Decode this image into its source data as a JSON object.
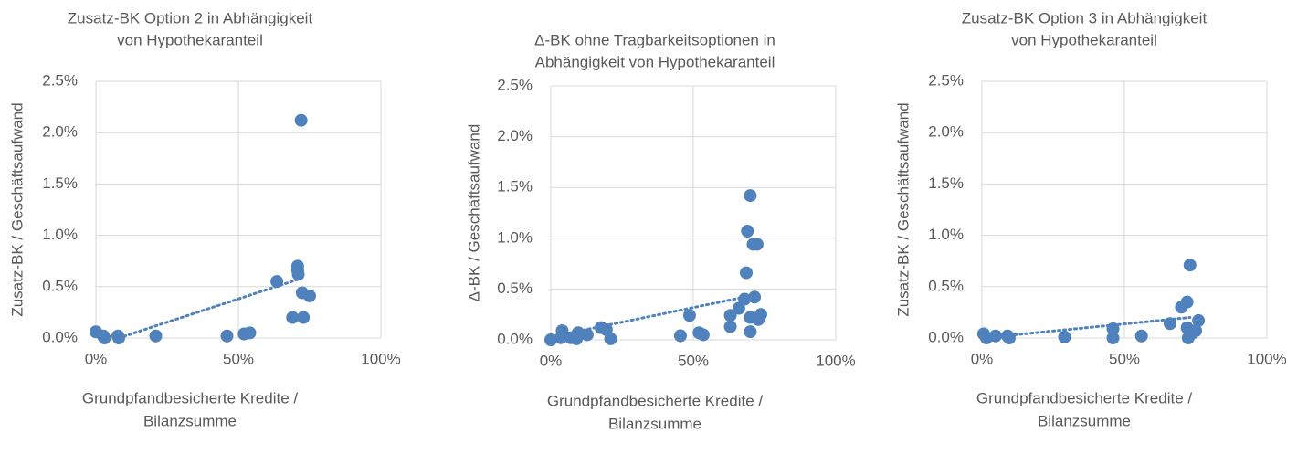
{
  "chart_data": [
    {
      "type": "scatter",
      "title": [
        "Zusatz-BK Option 2 in Abhängigkeit",
        "von Hypothekaranteil"
      ],
      "ylabel": "Zusatz-BK / Geschäftsaufwand",
      "xlabel": [
        "Grundpfandbesicherte Kredite /",
        "Bilanzsumme"
      ],
      "color": "#4f81bd",
      "grid": true,
      "xlim": [
        0,
        100
      ],
      "xticks": [
        {
          "value": 0,
          "label": "0%"
        },
        {
          "value": 50,
          "label": "50%"
        },
        {
          "value": 100,
          "label": "100%"
        }
      ],
      "ylim": [
        0,
        2.5
      ],
      "yticks": [
        {
          "value": 0,
          "label": "0.0%"
        },
        {
          "value": 0.5,
          "label": "0.5%"
        },
        {
          "value": 1,
          "label": "1.0%"
        },
        {
          "value": 1.5,
          "label": "1.5%"
        },
        {
          "value": 2,
          "label": "2.0%"
        },
        {
          "value": 2.5,
          "label": "2.5%"
        }
      ],
      "x": [
        0,
        2.6,
        3,
        8,
        7.7,
        21,
        46,
        52,
        54,
        63.5,
        70.8,
        70.8,
        71,
        72.4,
        75,
        69,
        72.8,
        72
      ],
      "values": [
        0.06,
        0.02,
        0,
        0,
        0.02,
        0.02,
        0.02,
        0.04,
        0.05,
        0.55,
        0.7,
        0.66,
        0.62,
        0.44,
        0.41,
        0.2,
        0.2,
        2.12
      ],
      "trendline": {
        "x": [
          8,
          72
        ],
        "values": [
          0,
          0.58
        ]
      }
    },
    {
      "type": "scatter",
      "title": [
        "Δ-BK ohne Tragbarkeitsoptionen in",
        "Abhängigkeit von Hypothekaranteil"
      ],
      "ylabel": "Δ-BK / Geschäftsaufwand",
      "xlabel": [
        "Grundpfandbesicherte Kredite /",
        "Bilanzsumme"
      ],
      "color": "#4f81bd",
      "grid": true,
      "xlim": [
        0,
        100
      ],
      "xticks": [
        {
          "value": 0,
          "label": "0%"
        },
        {
          "value": 50,
          "label": "50%"
        },
        {
          "value": 100,
          "label": "100%"
        }
      ],
      "ylim": [
        0,
        2.5
      ],
      "yticks": [
        {
          "value": 0,
          "label": "0.0%"
        },
        {
          "value": 0.5,
          "label": "0.5%"
        },
        {
          "value": 1,
          "label": "1.0%"
        },
        {
          "value": 1.5,
          "label": "1.5%"
        },
        {
          "value": 2,
          "label": "2.0%"
        },
        {
          "value": 2.5,
          "label": "2.5%"
        }
      ],
      "x": [
        0,
        4,
        3.5,
        7,
        9.6,
        12.8,
        9,
        17.6,
        19.5,
        21,
        45.5,
        48.7,
        52,
        53.5,
        63,
        63,
        66,
        68,
        70,
        70,
        69,
        71,
        68.6,
        70,
        71.5,
        72.8,
        72.4,
        73.7
      ],
      "values": [
        0,
        0.09,
        0.02,
        0.02,
        0.07,
        0.05,
        0.01,
        0.12,
        0.1,
        0.01,
        0.04,
        0.24,
        0.07,
        0.05,
        0.13,
        0.24,
        0.31,
        0.4,
        0.22,
        1.42,
        1.07,
        0.94,
        0.66,
        0.08,
        0.42,
        0.2,
        0.94,
        0.25
      ],
      "trendline": {
        "x": [
          0,
          73
        ],
        "values": [
          0.03,
          0.45
        ]
      }
    },
    {
      "type": "scatter",
      "title": [
        "Zusatz-BK Option 3 in Abhängigkeit",
        "von Hypothekaranteil"
      ],
      "ylabel": "Zusatz-BK / Geschäftsaufwand",
      "xlabel": [
        "Grundpfandbesicherte Kredite /",
        "Bilanzsumme"
      ],
      "color": "#4f81bd",
      "grid": true,
      "xlim": [
        0,
        100
      ],
      "xticks": [
        {
          "value": 0,
          "label": "0%"
        },
        {
          "value": 50,
          "label": "50%"
        },
        {
          "value": 100,
          "label": "100%"
        }
      ],
      "ylim": [
        0,
        2.5
      ],
      "yticks": [
        {
          "value": 0,
          "label": "0.0%"
        },
        {
          "value": 0.5,
          "label": "0.5%"
        },
        {
          "value": 1,
          "label": "1.0%"
        },
        {
          "value": 1.5,
          "label": "1.5%"
        },
        {
          "value": 2,
          "label": "2.0%"
        },
        {
          "value": 2.5,
          "label": "2.5%"
        }
      ],
      "x": [
        0.6,
        1.6,
        4.8,
        9,
        9.6,
        29,
        46,
        46,
        56,
        66,
        70,
        72,
        73,
        72,
        72.4,
        74,
        76,
        75
      ],
      "values": [
        0.04,
        0,
        0.02,
        0.02,
        0,
        0.01,
        0.09,
        0,
        0.02,
        0.14,
        0.3,
        0.35,
        0.71,
        0.1,
        0,
        0.05,
        0.17,
        0.07
      ],
      "trendline": {
        "x": [
          0,
          73
        ],
        "values": [
          0,
          0.2
        ]
      }
    }
  ]
}
